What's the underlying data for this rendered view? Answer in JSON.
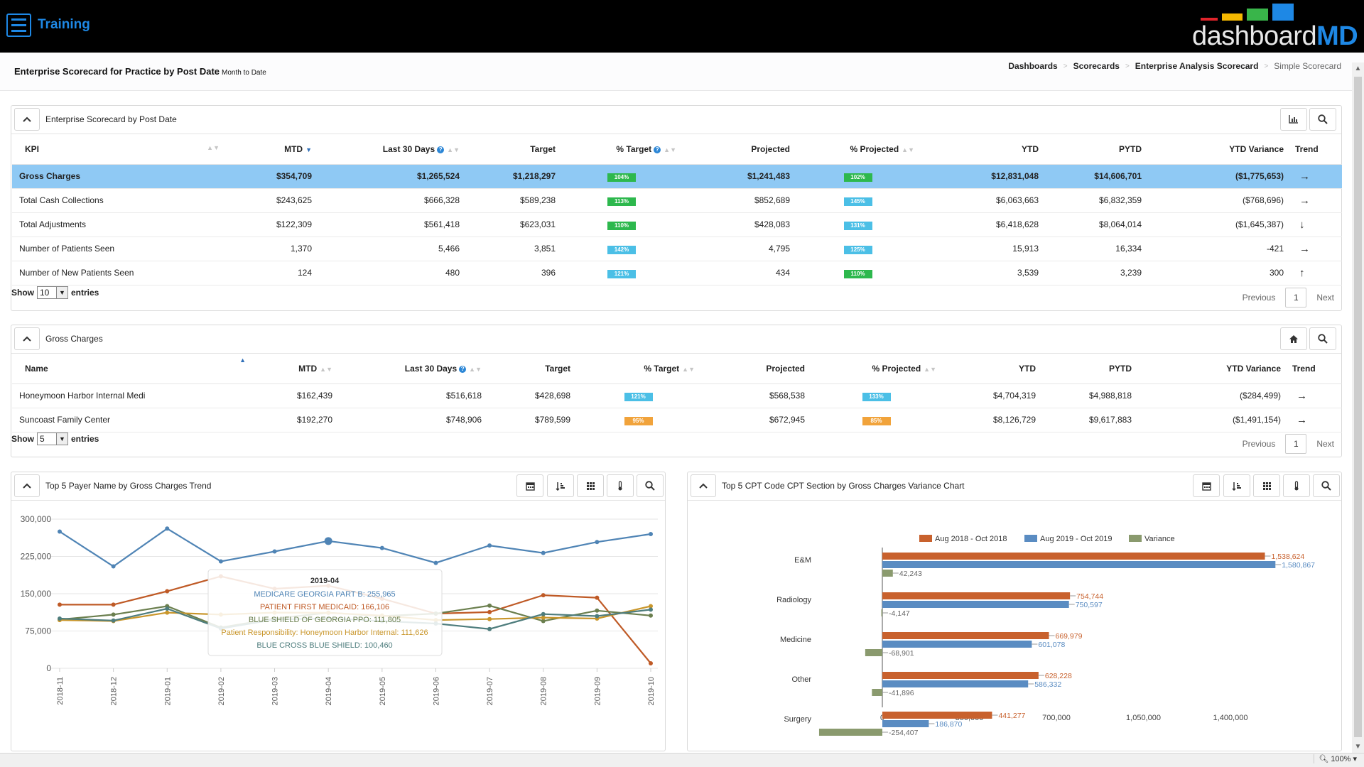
{
  "app": {
    "title": "Training",
    "logo_light": "dashboard",
    "logo_bold": "MD"
  },
  "page": {
    "title": "Enterprise Scorecard for Practice by Post Date",
    "subtitle": "Month to Date"
  },
  "breadcrumb": [
    "Dashboards",
    "Scorecards",
    "Enterprise Analysis Scorecard",
    "Simple Scorecard"
  ],
  "colors": {
    "accent": "#1e88e5",
    "selected_row": "#8fc9f4",
    "badge_green": "#2db84d",
    "badge_blue": "#4bbfe6",
    "badge_orange": "#f1a33b"
  },
  "scorecard": {
    "title": "Enterprise Scorecard by Post Date",
    "columns": [
      "KPI",
      "MTD",
      "Last 30 Days",
      "Target",
      "% Target",
      "Projected",
      "% Projected",
      "YTD",
      "PYTD",
      "YTD Variance",
      "Trend"
    ],
    "rows": [
      {
        "kpi": "Gross Charges",
        "mtd": "$354,709",
        "last30": "$1,265,524",
        "target": "$1,218,297",
        "pct_target": "104%",
        "pct_target_color": "green",
        "projected": "$1,241,483",
        "pct_projected": "102%",
        "pct_projected_color": "green",
        "ytd": "$12,831,048",
        "pytd": "$14,606,701",
        "variance": "($1,775,653)",
        "trend": "→"
      },
      {
        "kpi": "Total Cash Collections",
        "mtd": "$243,625",
        "last30": "$666,328",
        "target": "$589,238",
        "pct_target": "113%",
        "pct_target_color": "green",
        "projected": "$852,689",
        "pct_projected": "145%",
        "pct_projected_color": "blue",
        "ytd": "$6,063,663",
        "pytd": "$6,832,359",
        "variance": "($768,696)",
        "trend": "→"
      },
      {
        "kpi": "Total Adjustments",
        "mtd": "$122,309",
        "last30": "$561,418",
        "target": "$623,031",
        "pct_target": "110%",
        "pct_target_color": "green",
        "projected": "$428,083",
        "pct_projected": "131%",
        "pct_projected_color": "blue",
        "ytd": "$6,418,628",
        "pytd": "$8,064,014",
        "variance": "($1,645,387)",
        "trend": "↓"
      },
      {
        "kpi": "Number of Patients Seen",
        "mtd": "1,370",
        "last30": "5,466",
        "target": "3,851",
        "pct_target": "142%",
        "pct_target_color": "blue",
        "projected": "4,795",
        "pct_projected": "125%",
        "pct_projected_color": "blue",
        "ytd": "15,913",
        "pytd": "16,334",
        "variance": "-421",
        "trend": "→"
      },
      {
        "kpi": "Number of New Patients Seen",
        "mtd": "124",
        "last30": "480",
        "target": "396",
        "pct_target": "121%",
        "pct_target_color": "blue",
        "projected": "434",
        "pct_projected": "110%",
        "pct_projected_color": "green",
        "ytd": "3,539",
        "pytd": "3,239",
        "variance": "300",
        "trend": "↑"
      }
    ],
    "show_label": "Show",
    "show_value": "10",
    "entries_label": "entries",
    "pager": {
      "previous": "Previous",
      "page": "1",
      "next": "Next"
    }
  },
  "gross": {
    "title": "Gross Charges",
    "columns": [
      "Name",
      "MTD",
      "Last 30 Days",
      "Target",
      "% Target",
      "Projected",
      "% Projected",
      "YTD",
      "PYTD",
      "YTD Variance",
      "Trend"
    ],
    "rows": [
      {
        "name": "Honeymoon Harbor Internal Medi",
        "mtd": "$162,439",
        "last30": "$516,618",
        "target": "$428,698",
        "pct_target": "121%",
        "pct_target_color": "blue",
        "projected": "$568,538",
        "pct_projected": "133%",
        "pct_projected_color": "blue",
        "ytd": "$4,704,319",
        "pytd": "$4,988,818",
        "variance": "($284,499)",
        "trend": "→"
      },
      {
        "name": "Suncoast Family Center",
        "mtd": "$192,270",
        "last30": "$748,906",
        "target": "$789,599",
        "pct_target": "95%",
        "pct_target_color": "orange",
        "projected": "$672,945",
        "pct_projected": "85%",
        "pct_projected_color": "orange",
        "ytd": "$8,126,729",
        "pytd": "$9,617,883",
        "variance": "($1,491,154)",
        "trend": "→"
      }
    ],
    "show_label": "Show",
    "show_value": "5",
    "entries_label": "entries",
    "pager": {
      "previous": "Previous",
      "page": "1",
      "next": "Next"
    }
  },
  "line_panel": {
    "title": "Top 5 Payer Name by Gross Charges Trend"
  },
  "bar_panel": {
    "title": "Top 5 CPT Code CPT Section by Gross Charges Variance Chart"
  },
  "chart_data": [
    {
      "type": "line",
      "x": [
        "2018-11",
        "2018-12",
        "2019-01",
        "2019-02",
        "2019-03",
        "2019-04",
        "2019-05",
        "2019-06",
        "2019-07",
        "2019-08",
        "2019-09",
        "2019-10"
      ],
      "ylim": [
        0,
        300000
      ],
      "yticks": [
        "300,000",
        "225,000",
        "150,000",
        "75,000",
        "0"
      ],
      "series": [
        {
          "name": "MEDICARE GEORGIA PART B",
          "color": "#4f84b5",
          "values": [
            275000,
            205000,
            281000,
            215000,
            235000,
            255965,
            242000,
            212000,
            247000,
            232000,
            254000,
            270000
          ]
        },
        {
          "name": "PATIENT FIRST MEDICAID",
          "color": "#bf5a26",
          "values": [
            128000,
            128000,
            155000,
            185000,
            160000,
            166106,
            140000,
            110000,
            113000,
            147000,
            142000,
            10000
          ]
        },
        {
          "name": "BLUE SHIELD OF GEORGIA PPO",
          "color": "#6b7f4e",
          "values": [
            98000,
            108000,
            125000,
            82000,
            100000,
            111805,
            105000,
            110000,
            126000,
            95000,
            116000,
            106000
          ]
        },
        {
          "name": "Patient Responsibility: Honeymoon Harbor Internal",
          "color": "#c9962b",
          "values": [
            97000,
            95000,
            112000,
            108000,
            112000,
            111626,
            106000,
            97000,
            99000,
            102000,
            100000,
            125000
          ]
        },
        {
          "name": "BLUE CROSS BLUE SHIELD",
          "color": "#4e7d7d",
          "values": [
            100000,
            96000,
            120000,
            80000,
            98000,
            100460,
            95000,
            90000,
            79000,
            109000,
            105000,
            118000
          ]
        }
      ],
      "tooltip": {
        "title": "2019-04",
        "lines": [
          "MEDICARE GEORGIA PART B: 255,965",
          "PATIENT FIRST MEDICAID: 166,106",
          "BLUE SHIELD OF GEORGIA PPO: 111,805",
          "Patient Responsibility: Honeymoon Harbor Internal: 111,626",
          "BLUE CROSS BLUE SHIELD: 100,460"
        ]
      }
    },
    {
      "type": "bar",
      "orientation": "horizontal",
      "categories": [
        "E&M",
        "Radiology",
        "Medicine",
        "Other",
        "Surgery"
      ],
      "xlim": [
        -254407,
        1580867
      ],
      "xticks": [
        "0",
        "350,000",
        "700,000",
        "1,050,000",
        "1,400,000"
      ],
      "legend_position": "top",
      "series": [
        {
          "name": "Aug 2018 - Oct 2018",
          "color": "#c8612d",
          "values": [
            1538624,
            754744,
            669979,
            628228,
            441277
          ],
          "labels": [
            "1,538,624",
            "754,744",
            "669,979",
            "628,228",
            "441,277"
          ]
        },
        {
          "name": "Aug 2019 - Oct 2019",
          "color": "#5a8cc2",
          "values": [
            1580867,
            750597,
            601078,
            586332,
            186870
          ],
          "labels": [
            "1,580,867",
            "750,597",
            "601,078",
            "586,332",
            "186,870"
          ]
        },
        {
          "name": "Variance",
          "color": "#8a9a6e",
          "values": [
            42243,
            -4147,
            -68901,
            -41896,
            -254407
          ],
          "labels": [
            "42,243",
            "-4,147",
            "-68,901",
            "-41,896",
            "-254,407"
          ]
        }
      ]
    }
  ],
  "statusbar": {
    "zoom": "100%"
  }
}
